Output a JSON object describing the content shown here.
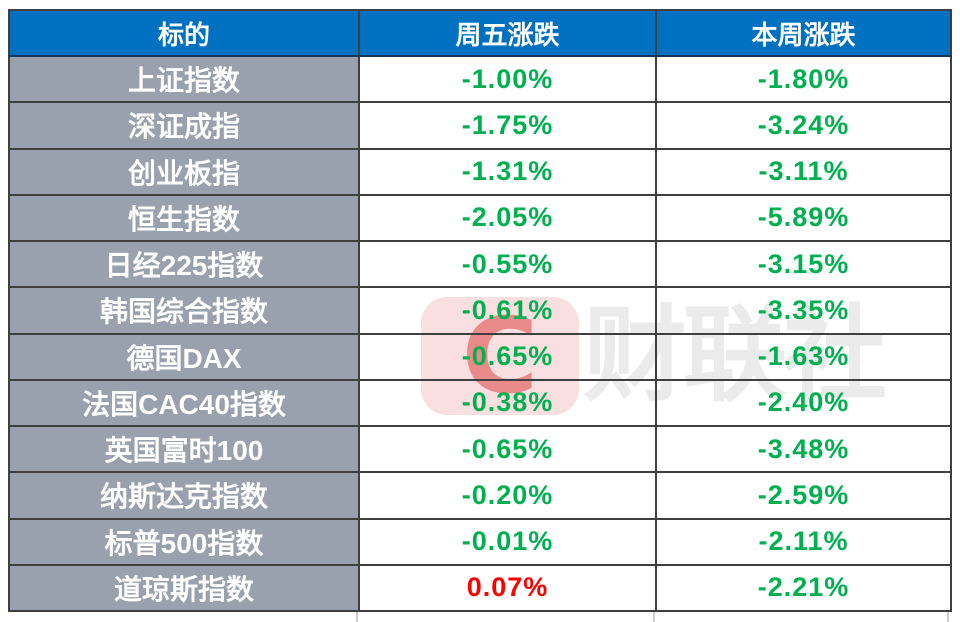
{
  "table": {
    "headers": [
      {
        "label": "标的"
      },
      {
        "label": "周五涨跌"
      },
      {
        "label": "本周涨跌"
      }
    ],
    "rows": [
      {
        "label": "上证指数",
        "friday": {
          "text": "-1.00%",
          "direction": "down"
        },
        "week": {
          "text": "-1.80%",
          "direction": "down"
        }
      },
      {
        "label": "深证成指",
        "friday": {
          "text": "-1.75%",
          "direction": "down"
        },
        "week": {
          "text": "-3.24%",
          "direction": "down"
        }
      },
      {
        "label": "创业板指",
        "friday": {
          "text": "-1.31%",
          "direction": "down"
        },
        "week": {
          "text": "-3.11%",
          "direction": "down"
        }
      },
      {
        "label": "恒生指数",
        "friday": {
          "text": "-2.05%",
          "direction": "down"
        },
        "week": {
          "text": "-5.89%",
          "direction": "down"
        }
      },
      {
        "label": "日经225指数",
        "friday": {
          "text": "-0.55%",
          "direction": "down"
        },
        "week": {
          "text": "-3.15%",
          "direction": "down"
        }
      },
      {
        "label": "韩国综合指数",
        "friday": {
          "text": "-0.61%",
          "direction": "down"
        },
        "week": {
          "text": "-3.35%",
          "direction": "down"
        }
      },
      {
        "label": "德国DAX",
        "friday": {
          "text": "-0.65%",
          "direction": "down"
        },
        "week": {
          "text": "-1.63%",
          "direction": "down"
        }
      },
      {
        "label": "法国CAC40指数",
        "friday": {
          "text": "-0.38%",
          "direction": "down"
        },
        "week": {
          "text": "-2.40%",
          "direction": "down"
        }
      },
      {
        "label": "英国富时100",
        "friday": {
          "text": "-0.65%",
          "direction": "down"
        },
        "week": {
          "text": "-3.48%",
          "direction": "down"
        }
      },
      {
        "label": "纳斯达克指数",
        "friday": {
          "text": "-0.20%",
          "direction": "down"
        },
        "week": {
          "text": "-2.59%",
          "direction": "down"
        }
      },
      {
        "label": "标普500指数",
        "friday": {
          "text": "-0.01%",
          "direction": "down"
        },
        "week": {
          "text": "-2.11%",
          "direction": "down"
        }
      },
      {
        "label": "道琼斯指数",
        "friday": {
          "text": "0.07%",
          "direction": "up"
        },
        "week": {
          "text": "-2.21%",
          "direction": "down"
        }
      }
    ],
    "colors": {
      "header_bg": "#0070C0",
      "header_text": "#FFFFFF",
      "label_bg": "#98A1AD",
      "label_text": "#FFFFFF",
      "down": "#00B050",
      "up": "#FF0000",
      "border": "#3F3F3F"
    }
  },
  "watermark": {
    "logo_letter": "C",
    "text": "财联社"
  }
}
